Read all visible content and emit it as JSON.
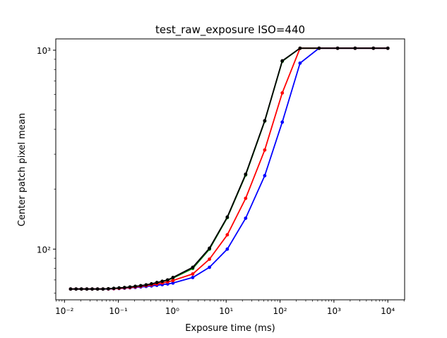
{
  "chart_data": {
    "type": "line",
    "title": "test_raw_exposure ISO=440",
    "xlabel": "Exposure time (ms)",
    "ylabel": "Center patch pixel mean",
    "xscale": "log",
    "yscale": "log",
    "xlim": [
      0.0069,
      20500
    ],
    "ylim": [
      55.6,
      1140
    ],
    "grid": false,
    "x_ticks": [
      0.01,
      0.1,
      1,
      10,
      100,
      1000,
      10000
    ],
    "x_tick_labels": [
      "10⁻²",
      "10⁻¹",
      "10⁰",
      "10¹",
      "10²",
      "10³",
      "10⁴"
    ],
    "y_ticks": [
      100,
      1000
    ],
    "y_tick_labels": [
      "10²",
      "10³"
    ],
    "x": [
      0.013,
      0.0164,
      0.0206,
      0.026,
      0.0327,
      0.0411,
      0.0518,
      0.0652,
      0.0821,
      0.103,
      0.13,
      0.164,
      0.206,
      0.26,
      0.327,
      0.411,
      0.518,
      0.652,
      0.821,
      1.03,
      2.4,
      4.9,
      10.5,
      23,
      52,
      110,
      235,
      530,
      1170,
      2470,
      5400,
      10000
    ],
    "series": [
      {
        "color": "#008000",
        "values": [
          63,
          63,
          63,
          63,
          63,
          63,
          63,
          63.1,
          63.4,
          63.7,
          64,
          64.4,
          64.9,
          65.4,
          66,
          66.8,
          67.8,
          68.8,
          69.8,
          71.5,
          80,
          100,
          144,
          236,
          440,
          880,
          1023,
          1023,
          1023,
          1023,
          1023,
          1023
        ]
      },
      {
        "color": "#0000ff",
        "values": [
          63,
          63,
          63,
          63,
          63,
          63,
          63,
          63,
          63.2,
          63.4,
          63.6,
          63.9,
          64.2,
          64.5,
          64.9,
          65.3,
          65.8,
          66.3,
          66.8,
          67.5,
          72,
          81,
          100,
          143,
          234,
          435,
          861,
          1023,
          1023,
          1023,
          1023,
          1023
        ]
      },
      {
        "color": "#ff0000",
        "values": [
          63,
          63,
          63,
          63,
          63,
          63,
          63,
          63.1,
          63.3,
          63.5,
          63.8,
          64.1,
          64.5,
          65,
          65.5,
          66.1,
          66.8,
          67.6,
          68.4,
          69.5,
          75,
          89,
          118,
          180,
          315,
          610,
          1023,
          1023,
          1023,
          1023,
          1023,
          1023
        ]
      },
      {
        "color": "#000000",
        "values": [
          63,
          63,
          63,
          63,
          63,
          63,
          63,
          63.2,
          63.5,
          63.8,
          64.1,
          64.5,
          65,
          65.5,
          66.1,
          66.9,
          67.9,
          68.9,
          70,
          72,
          81,
          101,
          145,
          238,
          442,
          884,
          1023,
          1023,
          1023,
          1023,
          1023,
          1023
        ]
      }
    ]
  }
}
